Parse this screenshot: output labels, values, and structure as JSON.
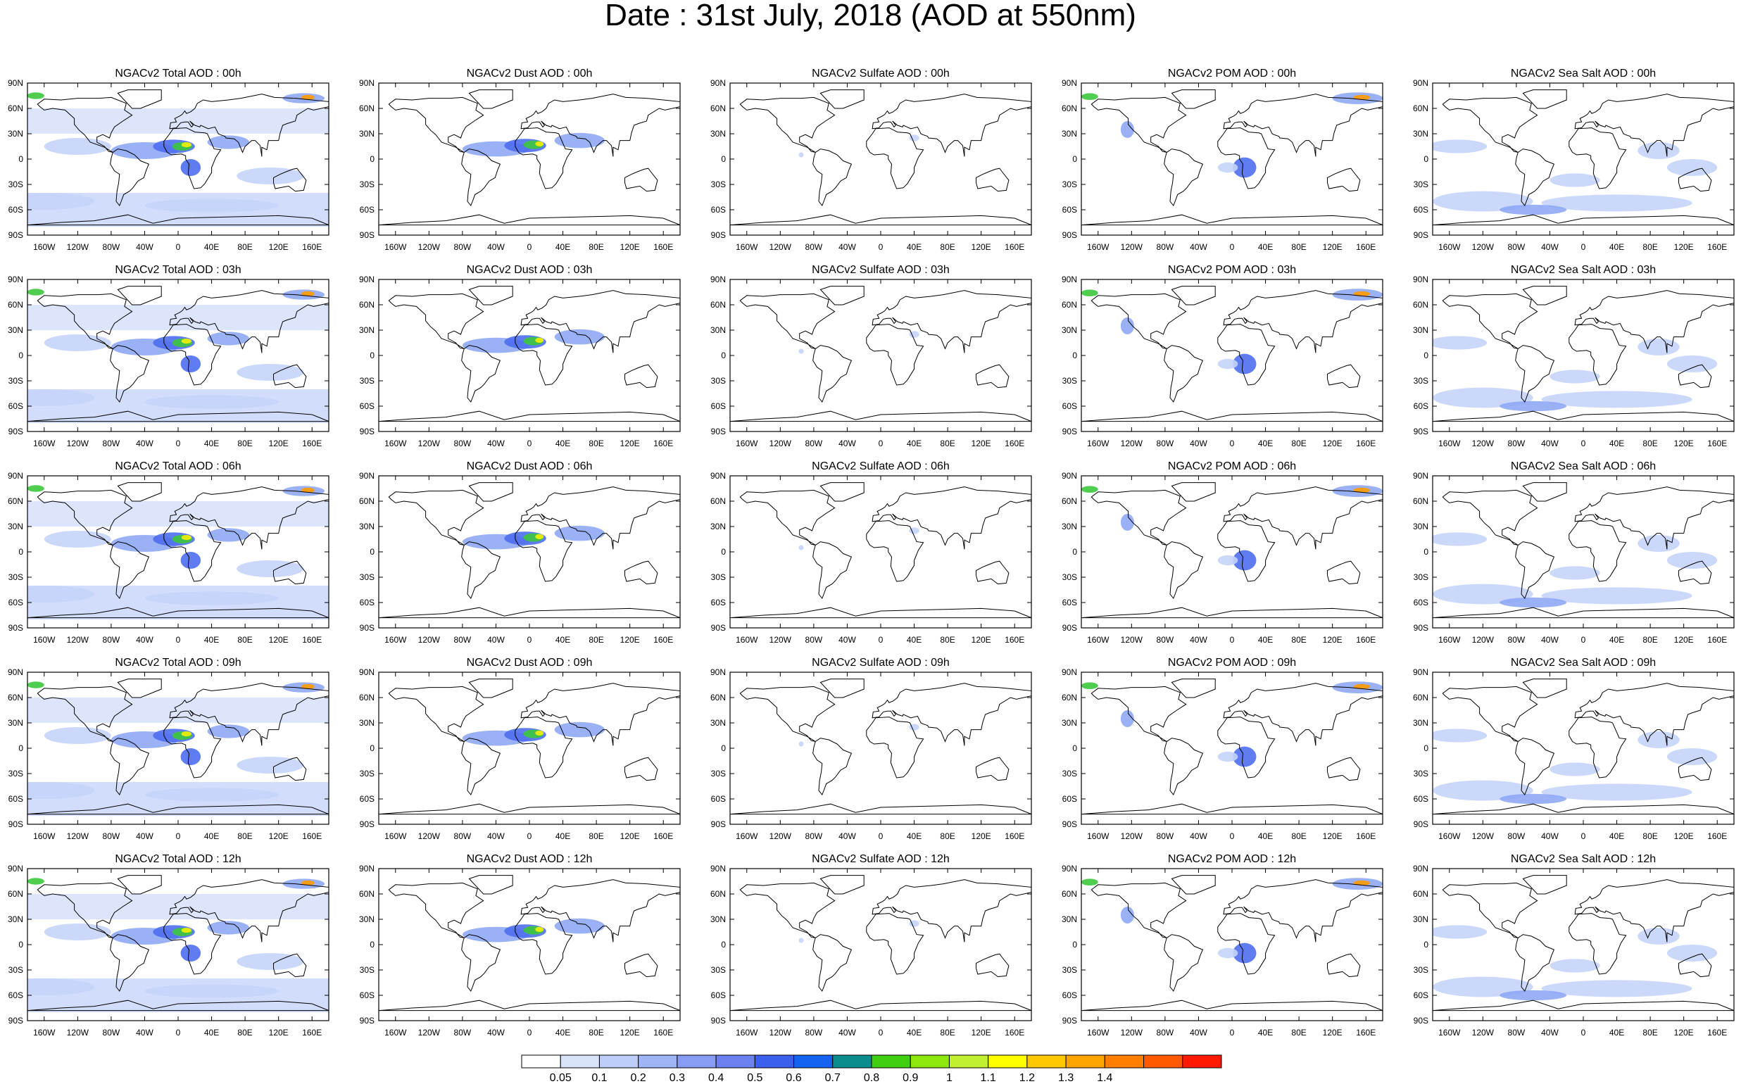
{
  "title": "Date : 31st July, 2018 (AOD at 550nm)",
  "panels": [
    [
      "NGACv2 Total AOD : 00h",
      "NGACv2 Dust AOD : 00h",
      "NGACv2 Sulfate AOD : 00h",
      "NGACv2 POM AOD : 00h",
      "NGACv2 Sea Salt AOD : 00h"
    ],
    [
      "NGACv2 Total AOD : 03h",
      "NGACv2 Dust AOD : 03h",
      "NGACv2 Sulfate AOD : 03h",
      "NGACv2 POM AOD : 03h",
      "NGACv2 Sea Salt AOD : 03h"
    ],
    [
      "NGACv2 Total AOD : 06h",
      "NGACv2 Dust AOD : 06h",
      "NGACv2 Sulfate AOD : 06h",
      "NGACv2 POM AOD : 06h",
      "NGACv2 Sea Salt AOD : 06h"
    ],
    [
      "NGACv2 Total AOD : 09h",
      "NGACv2 Dust AOD : 09h",
      "NGACv2 Sulfate AOD : 09h",
      "NGACv2 POM AOD : 09h",
      "NGACv2 Sea Salt  AOD : 09h"
    ],
    [
      "NGACv2 Total AOD : 12h",
      "NGACv2 Dust AOD : 12h",
      "NGACv2 Sulfate AOD : 12h",
      "NGACv2 POM  AOD : 12h",
      "NGACv2 Sea Salt AOD : 12h"
    ]
  ],
  "lat_ticks": [
    "90N",
    "60N",
    "30N",
    "0",
    "30S",
    "60S",
    "90S"
  ],
  "lon_ticks": [
    "160W",
    "120W",
    "80W",
    "40W",
    "0",
    "40E",
    "80E",
    "120E",
    "160E"
  ],
  "colorbar": {
    "colors": [
      "#ffffff",
      "#d9e4fb",
      "#bccef9",
      "#9fb6f6",
      "#879df3",
      "#6c80ef",
      "#3b60ee",
      "#1464f1",
      "#0b8c8d",
      "#40d010",
      "#8ee80c",
      "#c0f030",
      "#ffff00",
      "#ffc800",
      "#ffa500",
      "#ff8000",
      "#ff5a00",
      "#ff1a00"
    ],
    "labels": [
      "0.05",
      "0.1",
      "0.2",
      "0.3",
      "0.4",
      "0.5",
      "0.6",
      "0.7",
      "0.8",
      "0.9",
      "1",
      "1.1",
      "1.2",
      "1.3",
      "1.4"
    ]
  },
  "colors": {
    "light_blue": "#c5d4fa",
    "mid_blue": "#8fa8f5",
    "blue": "#4f6ef0",
    "teal": "#1a9a7a",
    "green": "#3cc83c",
    "yellow": "#f4f000",
    "orange": "#ff9a00",
    "red": "#ff2a00",
    "coast": "#000000"
  }
}
